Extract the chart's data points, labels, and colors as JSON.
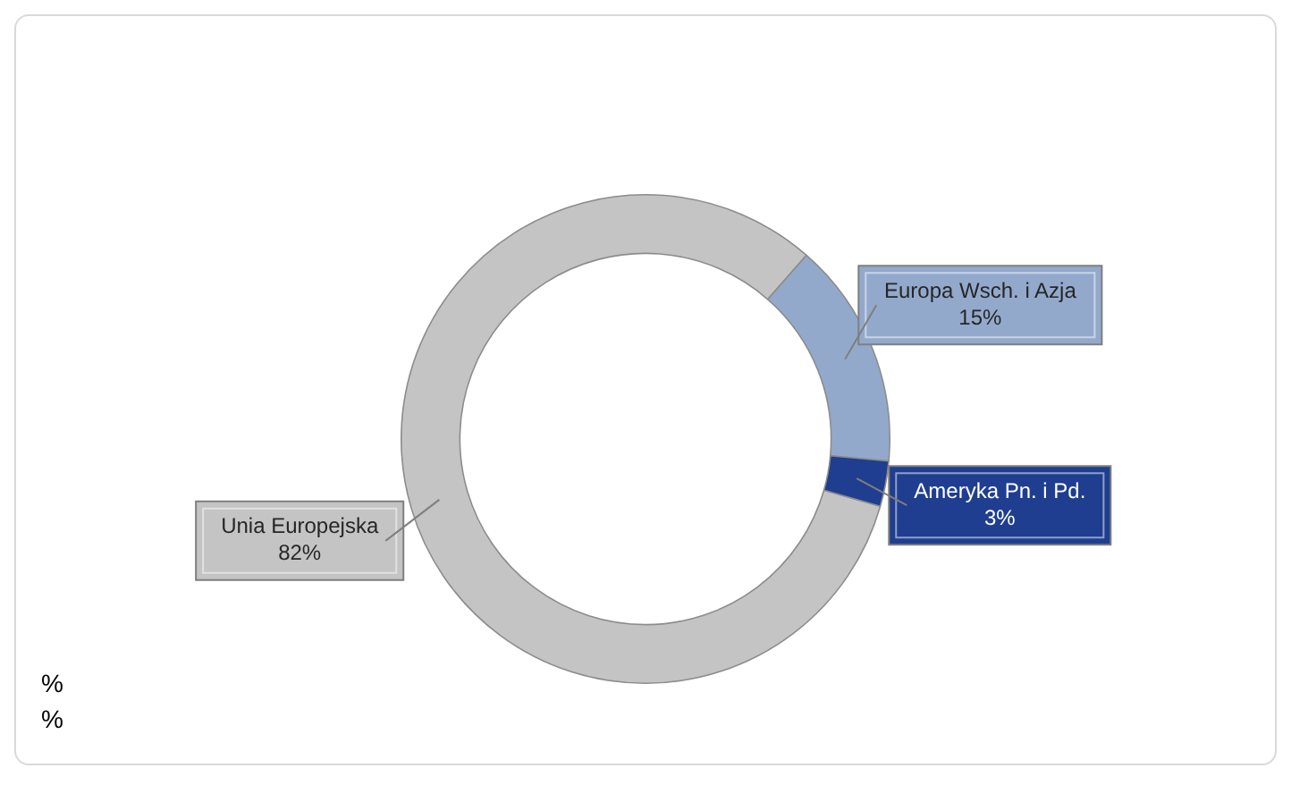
{
  "chart_data": {
    "type": "donut",
    "categories": [
      "Unia Europejska",
      "Europa Wsch. i Azja",
      "Ameryka Pn. i Pd."
    ],
    "values": [
      82,
      15,
      3
    ],
    "colors": [
      "#c4c4c4",
      "#93a9cc",
      "#1f3e8f"
    ],
    "value_labels": [
      "82%",
      "15%",
      "3%"
    ],
    "legend": false,
    "annotations": [
      "%",
      "%"
    ]
  }
}
